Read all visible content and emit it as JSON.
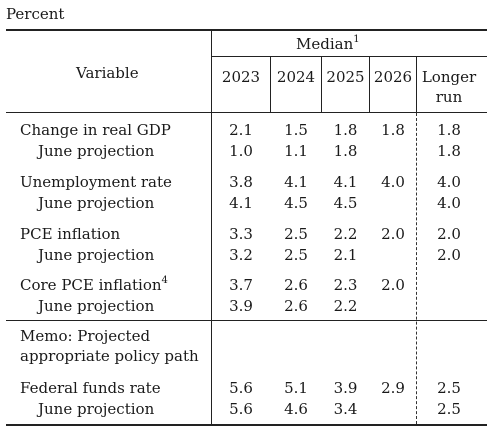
{
  "unit_label": "Percent",
  "header": {
    "variable": "Variable",
    "median": "Median",
    "median_note": "1",
    "years": [
      "2023",
      "2024",
      "2025",
      "2026"
    ],
    "longer_run_line1": "Longer",
    "longer_run_line2": "run"
  },
  "rows": {
    "gdp": {
      "label": "Change in real GDP",
      "values": [
        "2.1",
        "1.5",
        "1.8",
        "1.8",
        "1.8"
      ]
    },
    "gdp_june": {
      "label": "June projection",
      "values": [
        "1.0",
        "1.1",
        "1.8",
        "",
        "1.8"
      ]
    },
    "unemp": {
      "label": "Unemployment rate",
      "values": [
        "3.8",
        "4.1",
        "4.1",
        "4.0",
        "4.0"
      ]
    },
    "unemp_june": {
      "label": "June projection",
      "values": [
        "4.1",
        "4.5",
        "4.5",
        "",
        "4.0"
      ]
    },
    "pce": {
      "label": "PCE inflation",
      "values": [
        "3.3",
        "2.5",
        "2.2",
        "2.0",
        "2.0"
      ]
    },
    "pce_june": {
      "label": "June projection",
      "values": [
        "3.2",
        "2.5",
        "2.1",
        "",
        "2.0"
      ]
    },
    "core": {
      "label": "Core PCE inflation",
      "note": "4",
      "values": [
        "3.7",
        "2.6",
        "2.3",
        "2.0",
        ""
      ]
    },
    "core_june": {
      "label": "June projection",
      "values": [
        "3.9",
        "2.6",
        "2.2",
        "",
        ""
      ]
    },
    "memo_line1": "Memo: Projected",
    "memo_line2": "appropriate policy path",
    "ffr": {
      "label": "Federal funds rate",
      "values": [
        "5.6",
        "5.1",
        "3.9",
        "2.9",
        "2.5"
      ]
    },
    "ffr_june": {
      "label": "June projection",
      "values": [
        "5.6",
        "4.6",
        "3.4",
        "",
        "2.5"
      ]
    }
  }
}
